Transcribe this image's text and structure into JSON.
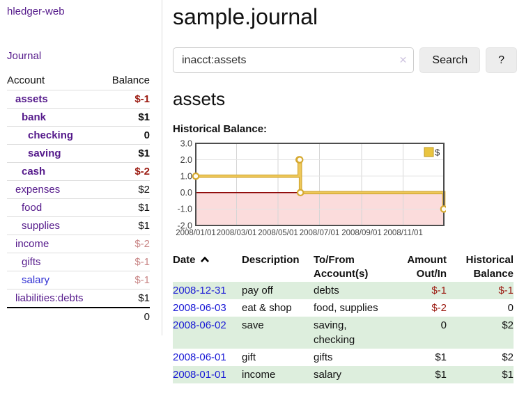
{
  "colors": {
    "link_purple": "#551a8b",
    "link_blue": "#1a1ad6",
    "negative": "#9b1a10",
    "negative_faded": "#c98787",
    "row_stripe_green": "#ddeedd",
    "chart_line_gold": "#e0b83b",
    "chart_negative_region": "#fbdcdc",
    "chart_zero_line": "#8b0000"
  },
  "sidebar": {
    "brand": "hledger-web",
    "journal_label": "Journal",
    "accounts_header": {
      "account": "Account",
      "balance": "Balance"
    },
    "accounts": [
      {
        "name": "assets",
        "depth": 1,
        "balance": "$-1",
        "bold": true,
        "balance_style": "negative"
      },
      {
        "name": "bank",
        "depth": 2,
        "balance": "$1",
        "bold": true,
        "balance_style": "normal"
      },
      {
        "name": "checking",
        "depth": 3,
        "balance": "0",
        "bold": true,
        "balance_style": "normal"
      },
      {
        "name": "saving",
        "depth": 3,
        "balance": "$1",
        "bold": true,
        "balance_style": "normal"
      },
      {
        "name": "cash",
        "depth": 2,
        "balance": "$-2",
        "bold": true,
        "balance_style": "negative"
      },
      {
        "name": "expenses",
        "depth": 1,
        "balance": "$2",
        "bold": false,
        "balance_style": "normal"
      },
      {
        "name": "food",
        "depth": 2,
        "balance": "$1",
        "bold": false,
        "balance_style": "normal"
      },
      {
        "name": "supplies",
        "depth": 2,
        "balance": "$1",
        "bold": false,
        "balance_style": "normal"
      },
      {
        "name": "income",
        "depth": 1,
        "balance": "$-2",
        "bold": false,
        "balance_style": "negative-faded"
      },
      {
        "name": "gifts",
        "depth": 2,
        "balance": "$-1",
        "bold": false,
        "balance_style": "negative-faded"
      },
      {
        "name": "salary",
        "depth": 2,
        "balance": "$-1",
        "bold": false,
        "balance_style": "negative-faded",
        "link_style": "blue"
      },
      {
        "name": "liabilities:debts",
        "depth": 1,
        "balance": "$1",
        "bold": false,
        "balance_style": "normal"
      }
    ],
    "total": "0"
  },
  "main": {
    "title": "sample.journal",
    "search": {
      "value": "inacct:assets",
      "clear_icon": "✕",
      "button_label": "Search",
      "help_label": "?"
    },
    "account_heading": "assets"
  },
  "chart_data": {
    "type": "line",
    "title": "Historical Balance:",
    "x_start": "2008-01-01",
    "x_end": "2008-12-31",
    "ylim": [
      -2,
      3
    ],
    "grid": true,
    "legend_position": "top-right",
    "y_ticks": [
      "3.0",
      "2.0",
      "1.0",
      "0.0",
      "-1.0",
      "-2.0"
    ],
    "x_ticks": [
      {
        "date": "2008-01-01",
        "label": "2008/01/01"
      },
      {
        "date": "2008-03-01",
        "label": "2008/03/01"
      },
      {
        "date": "2008-05-01",
        "label": "2008/05/01"
      },
      {
        "date": "2008-07-01",
        "label": "2008/07/01"
      },
      {
        "date": "2008-09-01",
        "label": "2008/09/01"
      },
      {
        "date": "2008-11-01",
        "label": "2008/11/01"
      }
    ],
    "series": [
      {
        "name": "$",
        "step": "after",
        "points": [
          {
            "date": "2008-01-01",
            "value": 1
          },
          {
            "date": "2008-06-01",
            "value": 2
          },
          {
            "date": "2008-06-02",
            "value": 2
          },
          {
            "date": "2008-06-03",
            "value": 0
          },
          {
            "date": "2008-12-31",
            "value": -1
          }
        ]
      }
    ]
  },
  "register": {
    "headers": [
      {
        "lines": [
          "Date"
        ],
        "align": "left",
        "sorted": "ascending"
      },
      {
        "lines": [
          "Description"
        ],
        "align": "left"
      },
      {
        "lines": [
          "To/From",
          "Account(s)"
        ],
        "align": "left"
      },
      {
        "lines": [
          "Amount",
          "Out/In"
        ],
        "align": "right"
      },
      {
        "lines": [
          "Historical",
          "Balance"
        ],
        "align": "right"
      }
    ],
    "rows": [
      {
        "date": "2008-12-31",
        "description": "pay off",
        "accounts": "debts",
        "amount": "$-1",
        "amount_negative": true,
        "balance": "$-1",
        "balance_negative": true
      },
      {
        "date": "2008-06-03",
        "description": "eat & shop",
        "accounts": "food, supplies",
        "amount": "$-2",
        "amount_negative": true,
        "balance": "0",
        "balance_negative": false
      },
      {
        "date": "2008-06-02",
        "description": "save",
        "accounts": "saving, checking",
        "amount": "0",
        "amount_negative": false,
        "balance": "$2",
        "balance_negative": false
      },
      {
        "date": "2008-06-01",
        "description": "gift",
        "accounts": "gifts",
        "amount": "$1",
        "amount_negative": false,
        "balance": "$2",
        "balance_negative": false
      },
      {
        "date": "2008-01-01",
        "description": "income",
        "accounts": "salary",
        "amount": "$1",
        "amount_negative": false,
        "balance": "$1",
        "balance_negative": false
      }
    ]
  }
}
